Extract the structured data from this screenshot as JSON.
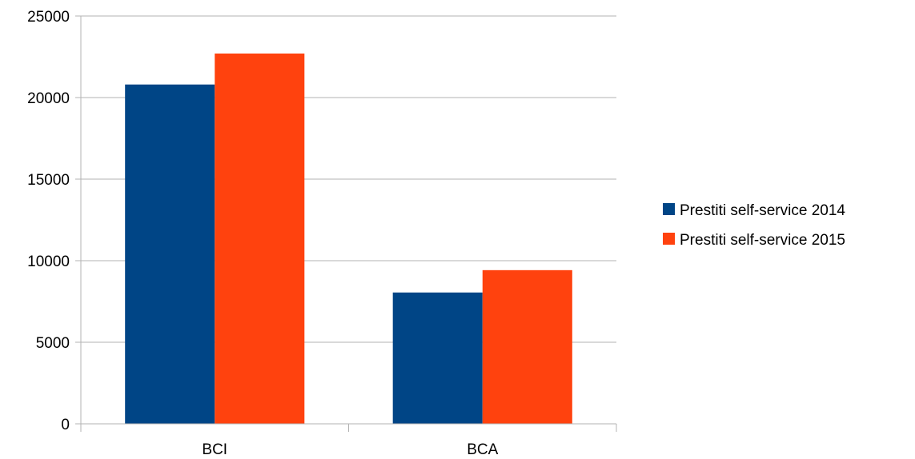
{
  "chart_data": {
    "type": "bar",
    "categories": [
      "BCI",
      "BCA"
    ],
    "series": [
      {
        "name": "Prestiti self-service 2014",
        "values": [
          20800,
          8050
        ],
        "color": "#004586"
      },
      {
        "name": "Prestiti self-service 2015",
        "values": [
          22700,
          9420
        ],
        "color": "#ff420e"
      }
    ],
    "y_ticks": [
      "0",
      "5000",
      "10000",
      "15000",
      "20000",
      "25000"
    ],
    "ylim": [
      0,
      25000
    ],
    "grid": true,
    "legend_position": "right"
  }
}
